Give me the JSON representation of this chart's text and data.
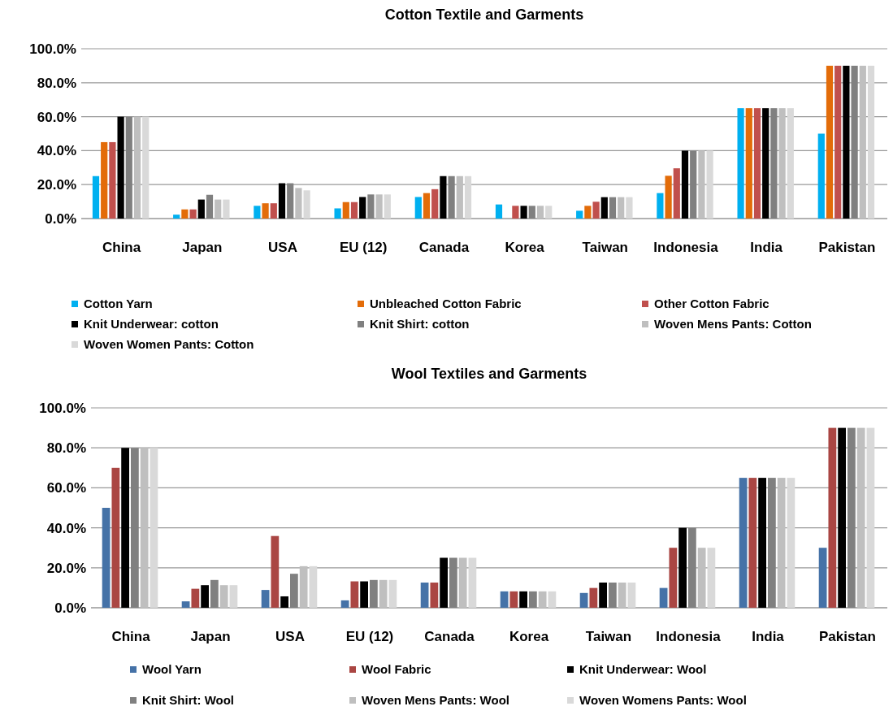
{
  "chart_data": [
    {
      "type": "bar",
      "title": "Cotton Textile and Garments",
      "categories": [
        "China",
        "Japan",
        "USA",
        "EU (12)",
        "Canada",
        "Korea",
        "Taiwan",
        "Indonesia",
        "India",
        "Pakistan"
      ],
      "series": [
        {
          "name": "Cotton Yarn",
          "color": "#00b0f0",
          "values": [
            25,
            2.3,
            7.5,
            6,
            12.7,
            8.3,
            4.6,
            15,
            65,
            50
          ]
        },
        {
          "name": "Unbleached Cotton Fabric",
          "color": "#e36c09",
          "values": [
            45,
            5.4,
            9,
            9.7,
            15,
            null,
            7.5,
            25.2,
            65,
            90
          ]
        },
        {
          "name": "Other Cotton Fabric",
          "color": "#c0504d",
          "values": [
            45,
            5.4,
            9,
            9.7,
            17.3,
            7.5,
            9.9,
            29.6,
            65,
            90
          ]
        },
        {
          "name": "Knit Underwear: cotton",
          "color": "#000000",
          "values": [
            60,
            11.2,
            20.8,
            12.7,
            25,
            7.5,
            12.6,
            40,
            65,
            90
          ]
        },
        {
          "name": "Knit Shirt: cotton",
          "color": "#808080",
          "values": [
            60,
            14,
            20.8,
            14.2,
            25,
            7.5,
            12.6,
            40,
            65,
            90
          ]
        },
        {
          "name": "Woven Mens Pants: Cotton",
          "color": "#bfbfbf",
          "values": [
            60,
            11.2,
            18,
            14.2,
            25,
            7.5,
            12.6,
            40,
            65,
            90
          ]
        },
        {
          "name": "Woven Women Pants: Cotton",
          "color": "#d9d9d9",
          "values": [
            60,
            11.2,
            16.6,
            14.2,
            25,
            7.5,
            12.6,
            40,
            65,
            90
          ]
        }
      ],
      "ylim": [
        0,
        100
      ],
      "yticks": [
        {
          "value": 0,
          "label": "0.0%"
        },
        {
          "value": 20,
          "label": "20.0%"
        },
        {
          "value": 40,
          "label": "40.0%"
        },
        {
          "value": 60,
          "label": "60.0%"
        },
        {
          "value": 80,
          "label": "80.0%"
        },
        {
          "value": 100,
          "label": "100.0%"
        }
      ],
      "grid": "y",
      "legend": "bottom"
    },
    {
      "type": "bar",
      "title": "Wool Textiles and Garments",
      "categories": [
        "China",
        "Japan",
        "USA",
        "EU (12)",
        "Canada",
        "Korea",
        "Taiwan",
        "Indonesia",
        "India",
        "Pakistan"
      ],
      "series": [
        {
          "name": "Wool Yarn",
          "color": "#4572a7",
          "values": [
            50,
            3.2,
            8.9,
            3.7,
            12.6,
            8.2,
            7.4,
            9.9,
            65,
            30
          ]
        },
        {
          "name": "Wool Fabric",
          "color": "#aa4643",
          "values": [
            70,
            9.5,
            35.9,
            13.2,
            12.6,
            8.2,
            9.9,
            30,
            65,
            90
          ]
        },
        {
          "name": "Knit Underwear: Wool",
          "color": "#000000",
          "values": [
            80,
            11.3,
            5.7,
            13.2,
            25,
            8.2,
            12.6,
            40,
            65,
            90
          ]
        },
        {
          "name": "Knit Shirt: Wool",
          "color": "#808080",
          "values": [
            80,
            13.9,
            17,
            13.9,
            25,
            8.2,
            12.6,
            40,
            65,
            90
          ]
        },
        {
          "name": "Woven Mens Pants: Wool",
          "color": "#bfbfbf",
          "values": [
            80,
            11.3,
            20.8,
            13.9,
            25,
            8.2,
            12.6,
            30,
            65,
            90
          ]
        },
        {
          "name": "Woven Womens Pants: Wool",
          "color": "#d9d9d9",
          "values": [
            80,
            11.3,
            20.8,
            13.9,
            25,
            8.2,
            12.6,
            30,
            65,
            90
          ]
        }
      ],
      "ylim": [
        0,
        100
      ],
      "yticks": [
        {
          "value": 0,
          "label": "0.0%"
        },
        {
          "value": 20,
          "label": "20.0%"
        },
        {
          "value": 40,
          "label": "40.0%"
        },
        {
          "value": 60,
          "label": "60.0%"
        },
        {
          "value": 80,
          "label": "80.0%"
        },
        {
          "value": 100,
          "label": "100.0%"
        }
      ],
      "grid": "y",
      "legend": "bottom"
    }
  ]
}
